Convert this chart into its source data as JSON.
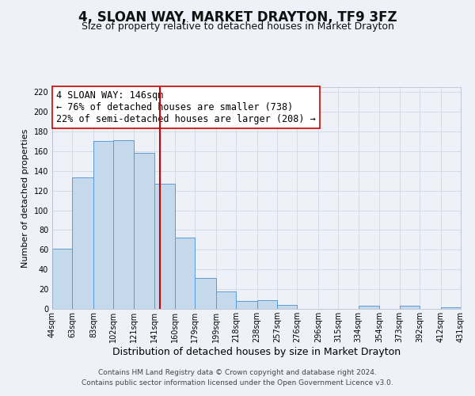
{
  "title": "4, SLOAN WAY, MARKET DRAYTON, TF9 3FZ",
  "subtitle": "Size of property relative to detached houses in Market Drayton",
  "xlabel": "Distribution of detached houses by size in Market Drayton",
  "ylabel": "Number of detached properties",
  "bar_left_edges": [
    44,
    63,
    83,
    102,
    121,
    141,
    160,
    179,
    199,
    218,
    238,
    257,
    276,
    296,
    315,
    334,
    354,
    373,
    392,
    412
  ],
  "bar_widths": [
    19,
    20,
    19,
    19,
    20,
    19,
    19,
    20,
    19,
    20,
    19,
    19,
    20,
    19,
    19,
    20,
    19,
    19,
    20,
    19
  ],
  "bar_heights": [
    61,
    133,
    170,
    171,
    158,
    127,
    72,
    31,
    18,
    8,
    9,
    4,
    0,
    0,
    0,
    3,
    0,
    3,
    0,
    2
  ],
  "tick_labels": [
    "44sqm",
    "63sqm",
    "83sqm",
    "102sqm",
    "121sqm",
    "141sqm",
    "160sqm",
    "179sqm",
    "199sqm",
    "218sqm",
    "238sqm",
    "257sqm",
    "276sqm",
    "296sqm",
    "315sqm",
    "334sqm",
    "354sqm",
    "373sqm",
    "392sqm",
    "412sqm",
    "431sqm"
  ],
  "bar_color": "#c5d9ed",
  "bar_edge_color": "#5b9bd5",
  "vline_x": 146,
  "vline_color": "#cc0000",
  "annotation_text": "4 SLOAN WAY: 146sqm\n← 76% of detached houses are smaller (738)\n22% of semi-detached houses are larger (208) →",
  "annotation_box_color": "#ffffff",
  "annotation_box_edge_color": "#cc0000",
  "ylim": [
    0,
    225
  ],
  "yticks": [
    0,
    20,
    40,
    60,
    80,
    100,
    120,
    140,
    160,
    180,
    200,
    220
  ],
  "grid_color": "#d0d8e4",
  "bg_color": "#eef2f8",
  "footer_line1": "Contains HM Land Registry data © Crown copyright and database right 2024.",
  "footer_line2": "Contains public sector information licensed under the Open Government Licence v3.0.",
  "title_fontsize": 12,
  "subtitle_fontsize": 9,
  "xlabel_fontsize": 9,
  "ylabel_fontsize": 8,
  "tick_fontsize": 7,
  "annotation_fontsize": 8.5,
  "footer_fontsize": 6.5
}
